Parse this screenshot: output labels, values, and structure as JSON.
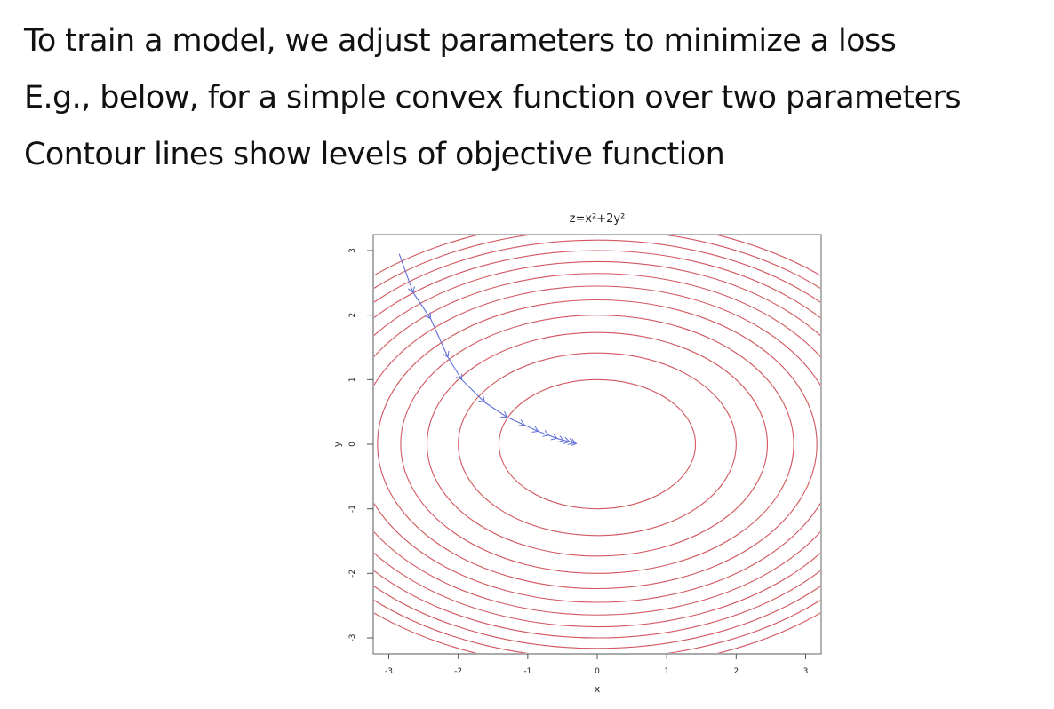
{
  "slide": {
    "lines": [
      "To train a model, we adjust parameters to minimize a loss",
      "E.g., below, for a simple convex function over two parameters",
      "Contour lines show levels of objective function"
    ]
  },
  "chart_data": {
    "type": "contour",
    "function": "z = x^2 + 2y^2",
    "title": "z=x²+2y²",
    "xlabel": "x",
    "ylabel": "y",
    "xlim": [
      -3.15,
      3.15
    ],
    "ylim": [
      -3.15,
      3.15
    ],
    "x_ticks": [
      "-3",
      "-2",
      "-1",
      "0",
      "1",
      "2",
      "3"
    ],
    "y_ticks": [
      "-3",
      "-2",
      "-1",
      "0",
      "1",
      "2",
      "3"
    ],
    "contour_levels": [
      2,
      4,
      6,
      8,
      10,
      12,
      14,
      16,
      18,
      20,
      22,
      24
    ],
    "contour_color": "#c8323c",
    "path_color": "#5f6fd8",
    "gradient_descent_path": [
      {
        "x": -2.85,
        "y": 2.95
      },
      {
        "x": -2.65,
        "y": 2.35
      },
      {
        "x": -2.4,
        "y": 1.95
      },
      {
        "x": -2.15,
        "y": 1.35
      },
      {
        "x": -1.95,
        "y": 1.0
      },
      {
        "x": -1.62,
        "y": 0.65
      },
      {
        "x": -1.3,
        "y": 0.42
      },
      {
        "x": -1.05,
        "y": 0.3
      },
      {
        "x": -0.85,
        "y": 0.2
      },
      {
        "x": -0.7,
        "y": 0.14
      },
      {
        "x": -0.58,
        "y": 0.09
      },
      {
        "x": -0.48,
        "y": 0.06
      },
      {
        "x": -0.4,
        "y": 0.04
      },
      {
        "x": -0.34,
        "y": 0.02
      },
      {
        "x": -0.3,
        "y": 0.01
      }
    ]
  }
}
